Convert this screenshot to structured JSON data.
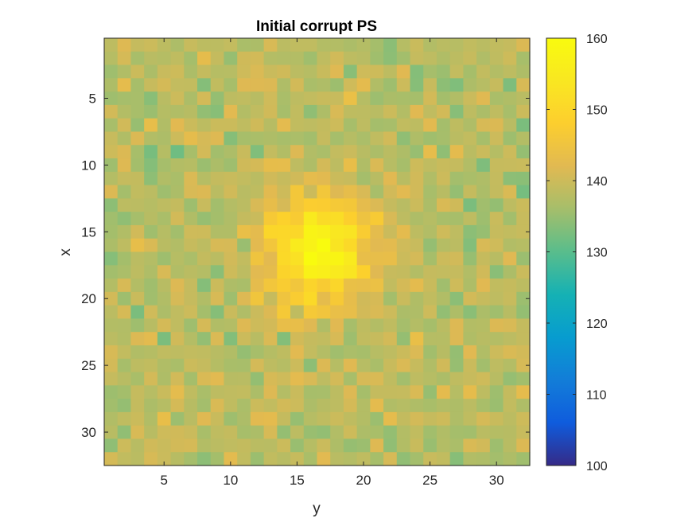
{
  "chart_data": {
    "type": "heatmap",
    "title": "Initial corrupt PS",
    "xlabel": "y",
    "ylabel": "x",
    "grid_size": 32,
    "x_range": [
      1,
      32
    ],
    "y_range": [
      1,
      32
    ],
    "y_direction": "reversed",
    "x_ticks": [
      "5",
      "10",
      "15",
      "20",
      "25",
      "30"
    ],
    "y_ticks": [
      "5",
      "10",
      "15",
      "20",
      "25",
      "30"
    ],
    "colormap": "parula",
    "colorbar": {
      "position": "right",
      "clim": [
        100,
        160
      ],
      "ticks": [
        "100",
        "110",
        "120",
        "130",
        "140",
        "150",
        "160"
      ]
    },
    "background_level": 138,
    "background_noise": 4,
    "peak": {
      "center_row": 16.5,
      "center_col": 16.5,
      "amplitude": 20,
      "sigma": 2.8,
      "max_value": 158
    }
  }
}
